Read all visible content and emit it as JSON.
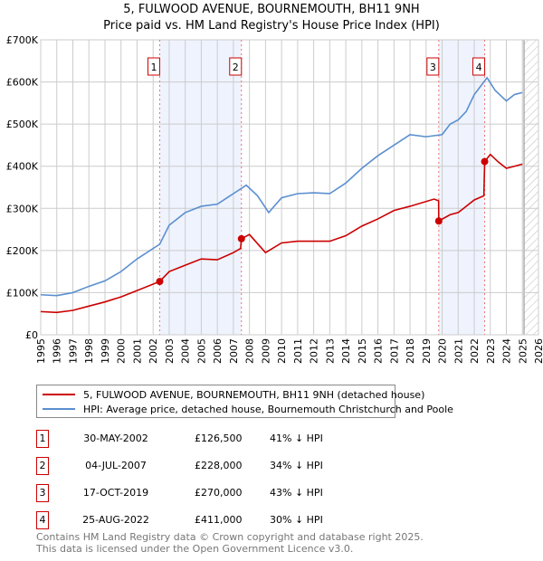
{
  "title": "5, FULWOOD AVENUE, BOURNEMOUTH, BH11 9NH",
  "subtitle": "Price paid vs. HM Land Registry's House Price Index (HPI)",
  "legend": {
    "red": "5, FULWOOD AVENUE, BOURNEMOUTH, BH11 9NH (detached house)",
    "blue": "HPI: Average price, detached house, Bournemouth Christchurch and Poole"
  },
  "colors": {
    "red": "#cc0000",
    "blue": "#5b8fd0",
    "shade": "#eef3fd",
    "grid": "#cccccc"
  },
  "sales": [
    {
      "n": "1",
      "date": "30-MAY-2002",
      "price": "£126,500",
      "hpi": "41% ↓ HPI"
    },
    {
      "n": "2",
      "date": "04-JUL-2007",
      "price": "£228,000",
      "hpi": "34% ↓ HPI"
    },
    {
      "n": "3",
      "date": "17-OCT-2019",
      "price": "£270,000",
      "hpi": "43% ↓ HPI"
    },
    {
      "n": "4",
      "date": "25-AUG-2022",
      "price": "£411,000",
      "hpi": "30% ↓ HPI"
    }
  ],
  "footer": [
    "Contains HM Land Registry data © Crown copyright and database right 2025.",
    "This data is licensed under the Open Government Licence v3.0."
  ],
  "chart_data": {
    "type": "line",
    "xlim": [
      1995,
      2026
    ],
    "ylim": [
      0,
      700000
    ],
    "yticks": [
      0,
      100000,
      200000,
      300000,
      400000,
      500000,
      600000,
      700000
    ],
    "ytick_labels": [
      "£0",
      "£100K",
      "£200K",
      "£300K",
      "£400K",
      "£500K",
      "£600K",
      "£700K"
    ],
    "xticks": [
      1995,
      1996,
      1997,
      1998,
      1999,
      2000,
      2001,
      2002,
      2003,
      2004,
      2005,
      2006,
      2007,
      2008,
      2009,
      2010,
      2011,
      2012,
      2013,
      2014,
      2015,
      2016,
      2017,
      2018,
      2019,
      2020,
      2021,
      2022,
      2023,
      2024,
      2025,
      2026
    ],
    "shaded": [
      [
        2002.41,
        2007.5
      ],
      [
        2019.79,
        2022.65
      ]
    ],
    "hatched_from": 2025.1,
    "markers": [
      {
        "label": "1",
        "x": 2002.41,
        "y": 126500
      },
      {
        "label": "2",
        "x": 2007.5,
        "y": 228000
      },
      {
        "label": "3",
        "x": 2019.79,
        "y": 270000
      },
      {
        "label": "4",
        "x": 2022.65,
        "y": 411000
      }
    ],
    "series": [
      {
        "name": "HPI",
        "x": [
          1995,
          1996,
          1997,
          1998,
          1999,
          2000,
          2001,
          2002.41,
          2003,
          2004,
          2005,
          2006,
          2007,
          2007.8,
          2008.5,
          2009.2,
          2010,
          2011,
          2012,
          2013,
          2014,
          2015,
          2016,
          2017,
          2018,
          2019,
          2020,
          2020.5,
          2021,
          2021.5,
          2022,
          2022.8,
          2023.3,
          2024,
          2024.5,
          2025
        ],
        "y": [
          95000,
          93000,
          100000,
          115000,
          128000,
          150000,
          180000,
          215000,
          260000,
          290000,
          305000,
          310000,
          335000,
          355000,
          330000,
          290000,
          325000,
          335000,
          337000,
          335000,
          360000,
          395000,
          425000,
          450000,
          475000,
          470000,
          475000,
          500000,
          510000,
          530000,
          570000,
          610000,
          580000,
          555000,
          570000,
          575000
        ]
      },
      {
        "name": "Price paid",
        "x": [
          1995,
          1996,
          1997,
          1998,
          1999,
          2000,
          2001,
          2002.41,
          2003,
          2004,
          2005,
          2006,
          2007,
          2007.45,
          2007.5,
          2008,
          2009,
          2010,
          2011,
          2012,
          2013,
          2014,
          2015,
          2016,
          2017,
          2018,
          2019.5,
          2019.78,
          2019.79,
          2020.5,
          2021,
          2022,
          2022.6,
          2022.65,
          2023,
          2023.5,
          2024,
          2024.5,
          2025
        ],
        "y": [
          55000,
          53000,
          58000,
          68000,
          78000,
          90000,
          105000,
          126500,
          150000,
          165000,
          180000,
          178000,
          195000,
          205000,
          228000,
          238000,
          195000,
          218000,
          222000,
          222000,
          222000,
          235000,
          258000,
          275000,
          295000,
          305000,
          322000,
          318000,
          270000,
          285000,
          290000,
          320000,
          330000,
          411000,
          428000,
          410000,
          395000,
          400000,
          405000
        ]
      }
    ]
  }
}
